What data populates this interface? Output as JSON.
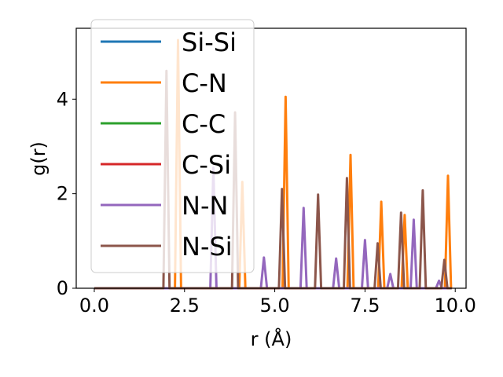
{
  "chart_data": {
    "type": "line",
    "title": "",
    "xlabel": "r (Å)",
    "ylabel": "g(r)",
    "xlim": [
      -0.5,
      10.3
    ],
    "ylim": [
      0,
      5.5
    ],
    "xticks": [
      0.0,
      2.5,
      5.0,
      7.5,
      10.0
    ],
    "xtick_labels": [
      "0.0",
      "2.5",
      "5.0",
      "7.5",
      "10.0"
    ],
    "yticks": [
      0,
      2,
      4
    ],
    "ytick_labels": [
      "0",
      "2",
      "4"
    ],
    "legend_position": "top-left",
    "grid": false,
    "series": [
      {
        "name": "Si-Si",
        "color": "#1f77b4",
        "peaks": []
      },
      {
        "name": "C-N",
        "color": "#ff7f0e",
        "peaks": [
          {
            "x": 2.32,
            "y": 5.25
          },
          {
            "x": 4.1,
            "y": 2.25
          },
          {
            "x": 5.3,
            "y": 4.05
          },
          {
            "x": 7.1,
            "y": 2.82
          },
          {
            "x": 7.95,
            "y": 1.83
          },
          {
            "x": 8.6,
            "y": 1.55
          },
          {
            "x": 9.8,
            "y": 2.38
          }
        ]
      },
      {
        "name": "C-C",
        "color": "#2ca02c",
        "peaks": []
      },
      {
        "name": "C-Si",
        "color": "#d62728",
        "peaks": []
      },
      {
        "name": "N-N",
        "color": "#9467bd",
        "peaks": [
          {
            "x": 3.3,
            "y": 2.55
          },
          {
            "x": 4.7,
            "y": 0.65
          },
          {
            "x": 5.8,
            "y": 1.7
          },
          {
            "x": 6.7,
            "y": 0.63
          },
          {
            "x": 7.5,
            "y": 1.02
          },
          {
            "x": 8.2,
            "y": 0.3
          },
          {
            "x": 8.85,
            "y": 1.45
          },
          {
            "x": 9.55,
            "y": 0.16
          }
        ]
      },
      {
        "name": "N-Si",
        "color": "#8c564b",
        "peaks": [
          {
            "x": 2.0,
            "y": 4.6
          },
          {
            "x": 3.9,
            "y": 3.72
          },
          {
            "x": 5.2,
            "y": 2.1
          },
          {
            "x": 6.2,
            "y": 1.98
          },
          {
            "x": 7.0,
            "y": 2.33
          },
          {
            "x": 7.85,
            "y": 0.95
          },
          {
            "x": 8.5,
            "y": 1.6
          },
          {
            "x": 9.1,
            "y": 2.07
          },
          {
            "x": 9.7,
            "y": 0.6
          }
        ]
      }
    ]
  }
}
